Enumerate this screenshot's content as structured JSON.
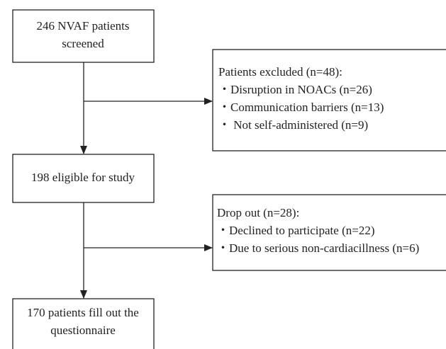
{
  "nodes": [
    {
      "lines": [
        "246 NVAF patients",
        "screened"
      ]
    },
    {
      "lines": [
        "Patients excluded (n=48):",
        "・Disruption in NOACs (n=26)",
        "・Communication barriers (n=13)",
        "・ Not self-administered (n=9)"
      ]
    },
    {
      "lines": [
        "198 eligible for study"
      ]
    },
    {
      "lines": [
        "Drop out (n=28):",
        "・Declined to participate (n=22)",
        "・Due to serious non-cardiacillness (n=6)"
      ]
    },
    {
      "lines": [
        "170 patients fill out the",
        "questionnaire"
      ]
    }
  ]
}
